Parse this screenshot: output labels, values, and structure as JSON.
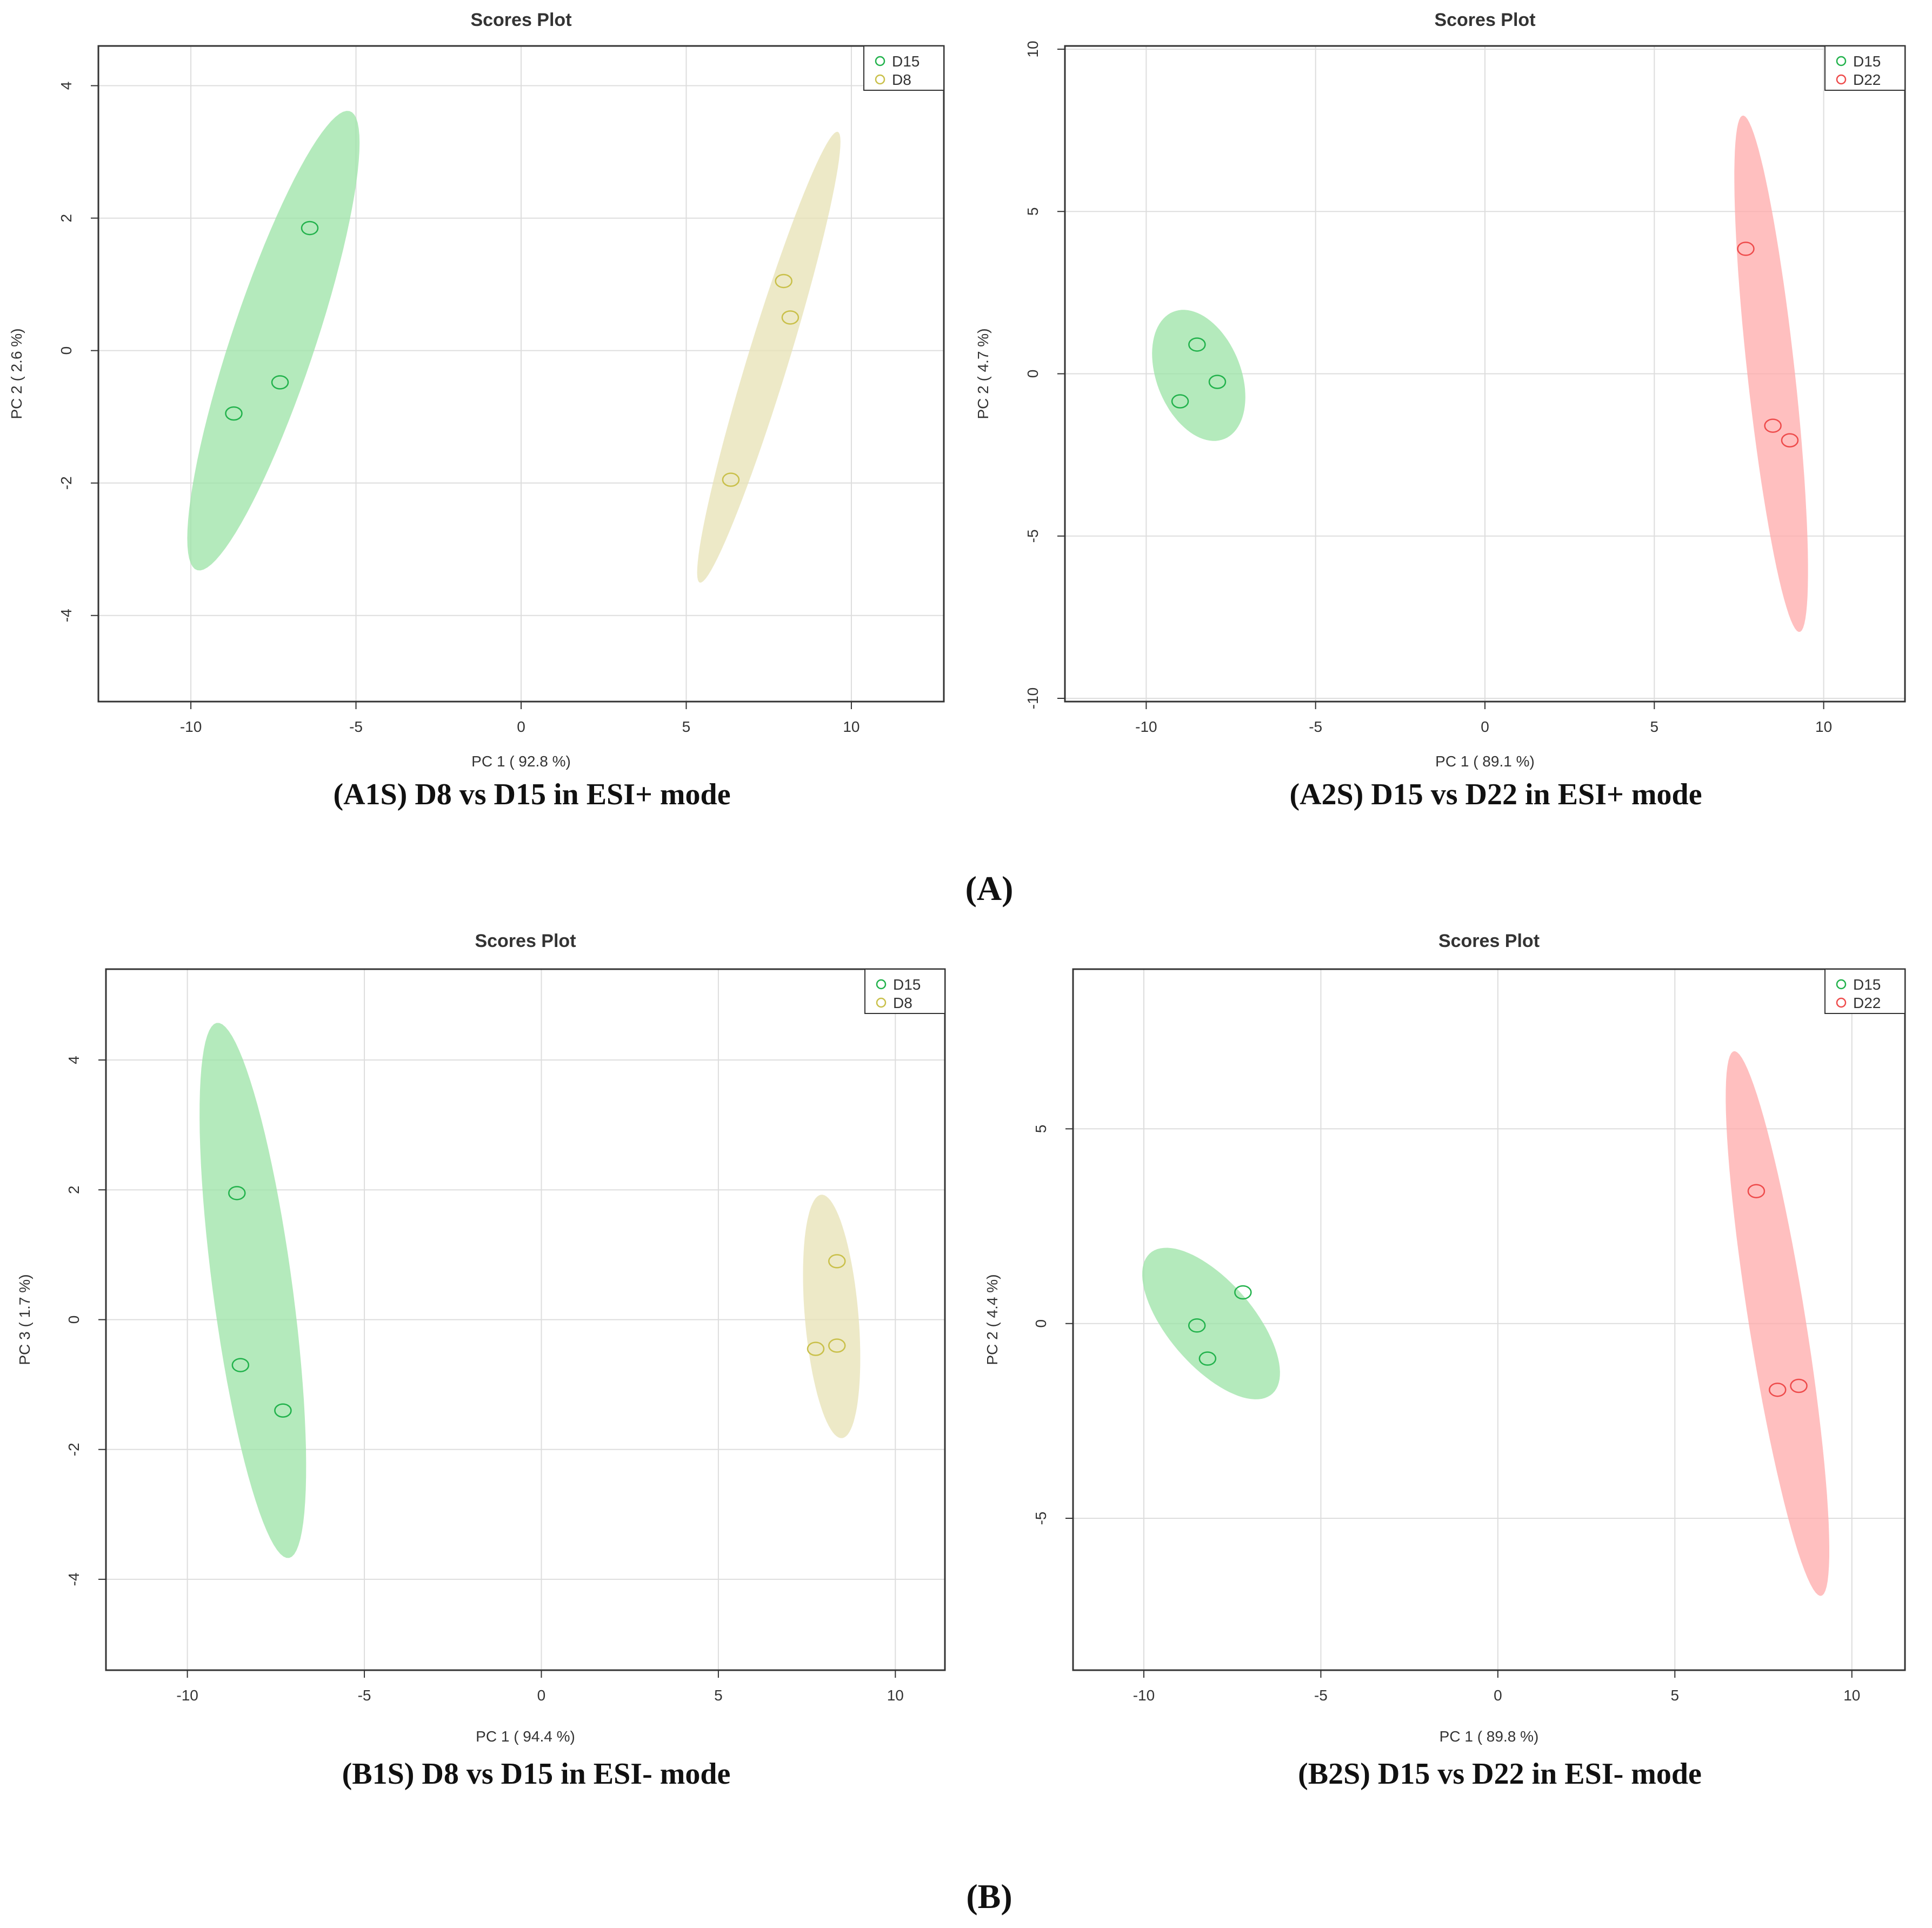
{
  "colors": {
    "D15": "#22b24c",
    "D15_fill": "#9be3a6",
    "D8": "#c9c04a",
    "D8_fill": "#e7e2b4",
    "D22": "#ee4b4b",
    "D22_fill": "#ffaaaa",
    "grid": "#dddddd",
    "frame": "#333333"
  },
  "section_labels": {
    "A": "(A)",
    "B": "(B)"
  },
  "chart_data": [
    {
      "id": "A1S",
      "type": "scatter",
      "title": "Scores Plot",
      "xlabel": "PC 1 ( 92.8 %)",
      "ylabel": "PC 2 ( 2.6 %)",
      "caption": "(A1S) D8 vs D15 in ESI+ mode",
      "xlim": [
        -12.8,
        12.8
      ],
      "ylim": [
        -5.3,
        4.6
      ],
      "xticks": [
        -10,
        -5,
        0,
        5,
        10
      ],
      "yticks": [
        -4,
        -2,
        0,
        2,
        4
      ],
      "grid": true,
      "legend_position": "top-right",
      "series": [
        {
          "name": "D15",
          "color_key": "D15",
          "points": [
            [
              -6.4,
              1.85
            ],
            [
              -7.3,
              -0.48
            ],
            [
              -8.7,
              -0.95
            ]
          ],
          "ellipse": {
            "cx": -7.5,
            "cy": 0.15,
            "rx": 4.2,
            "ry": 1.1,
            "angle_deg": 54.3
          }
        },
        {
          "name": "D8",
          "color_key": "D8",
          "points": [
            [
              7.95,
              1.05
            ],
            [
              8.15,
              0.5
            ],
            [
              6.35,
              -1.95
            ]
          ],
          "ellipse": {
            "cx": 7.5,
            "cy": -0.1,
            "rx": 4.0,
            "ry": 0.55,
            "angle_deg": 58.0
          }
        }
      ]
    },
    {
      "id": "A2S",
      "type": "scatter",
      "title": "Scores Plot",
      "xlabel": "PC 1 ( 89.1 %)",
      "ylabel": "PC 2 ( 4.7 %)",
      "caption": "(A2S) D15 vs D22 in ESI+ mode",
      "xlim": [
        -12.4,
        12.4
      ],
      "ylim": [
        -10.1,
        10.1
      ],
      "xticks": [
        -10,
        -5,
        0,
        5,
        10
      ],
      "yticks": [
        -10,
        -5,
        0,
        5,
        10
      ],
      "grid": true,
      "legend_position": "top-right",
      "series": [
        {
          "name": "D15",
          "color_key": "D15",
          "points": [
            [
              -8.5,
              0.9
            ],
            [
              -7.9,
              -0.25
            ],
            [
              -9.0,
              -0.85
            ]
          ],
          "ellipse": {
            "cx": -8.45,
            "cy": -0.05,
            "rx": 1.25,
            "ry": 2.1,
            "angle_deg": 20.0
          }
        },
        {
          "name": "D22",
          "color_key": "D22",
          "points": [
            [
              7.7,
              3.85
            ],
            [
              8.5,
              -1.6
            ],
            [
              9.0,
              -2.05
            ]
          ],
          "ellipse": {
            "cx": 8.45,
            "cy": 0.0,
            "rx": 0.7,
            "ry": 8.0,
            "angle_deg": 6.0
          }
        }
      ]
    },
    {
      "id": "B1S",
      "type": "scatter",
      "title": "Scores Plot",
      "xlabel": "PC 1 ( 94.4 %)",
      "ylabel": "PC 3 ( 1.7 %)",
      "caption": "(B1S) D8 vs D15 in ESI- mode",
      "xlim": [
        -12.3,
        11.4
      ],
      "ylim": [
        -5.4,
        5.4
      ],
      "xticks": [
        -10,
        -5,
        0,
        5,
        10
      ],
      "yticks": [
        -4,
        -2,
        0,
        2,
        4
      ],
      "grid": true,
      "legend_position": "top-right",
      "series": [
        {
          "name": "D15",
          "color_key": "D15",
          "points": [
            [
              -8.6,
              1.95
            ],
            [
              -8.5,
              -0.7
            ],
            [
              -7.3,
              -1.4
            ]
          ],
          "ellipse": {
            "cx": -8.15,
            "cy": 0.45,
            "rx": 1.1,
            "ry": 4.25,
            "angle_deg": 14.5
          }
        },
        {
          "name": "D8",
          "color_key": "D8",
          "points": [
            [
              8.35,
              0.9
            ],
            [
              7.75,
              -0.45
            ],
            [
              8.35,
              -0.4
            ]
          ],
          "ellipse": {
            "cx": 8.2,
            "cy": 0.05,
            "rx": 0.75,
            "ry": 1.9,
            "angle_deg": 10.0
          }
        }
      ]
    },
    {
      "id": "B2S",
      "type": "scatter",
      "title": "Scores Plot",
      "xlabel": "PC 1 ( 89.8 %)",
      "ylabel": "PC 2 ( 4.4 %)",
      "caption": "(B2S) D15 vs D22 in ESI- mode",
      "xlim": [
        -12.0,
        11.5
      ],
      "ylim": [
        -8.9,
        9.1
      ],
      "xticks": [
        -10,
        -5,
        0,
        5,
        10
      ],
      "yticks": [
        -5,
        0,
        5
      ],
      "grid": true,
      "legend_position": "top-right",
      "series": [
        {
          "name": "D15",
          "color_key": "D15",
          "points": [
            [
              -7.2,
              0.8
            ],
            [
              -8.5,
              -0.05
            ],
            [
              -8.2,
              -0.9
            ]
          ],
          "ellipse": {
            "cx": -8.1,
            "cy": 0.0,
            "rx": 1.15,
            "ry": 2.5,
            "angle_deg": 45.0
          }
        },
        {
          "name": "D22",
          "color_key": "D22",
          "points": [
            [
              7.3,
              3.4
            ],
            [
              7.9,
              -1.7
            ],
            [
              8.5,
              -1.6
            ]
          ],
          "ellipse": {
            "cx": 7.9,
            "cy": 0.0,
            "rx": 0.8,
            "ry": 7.1,
            "angle_deg": 10.0
          }
        }
      ]
    }
  ]
}
